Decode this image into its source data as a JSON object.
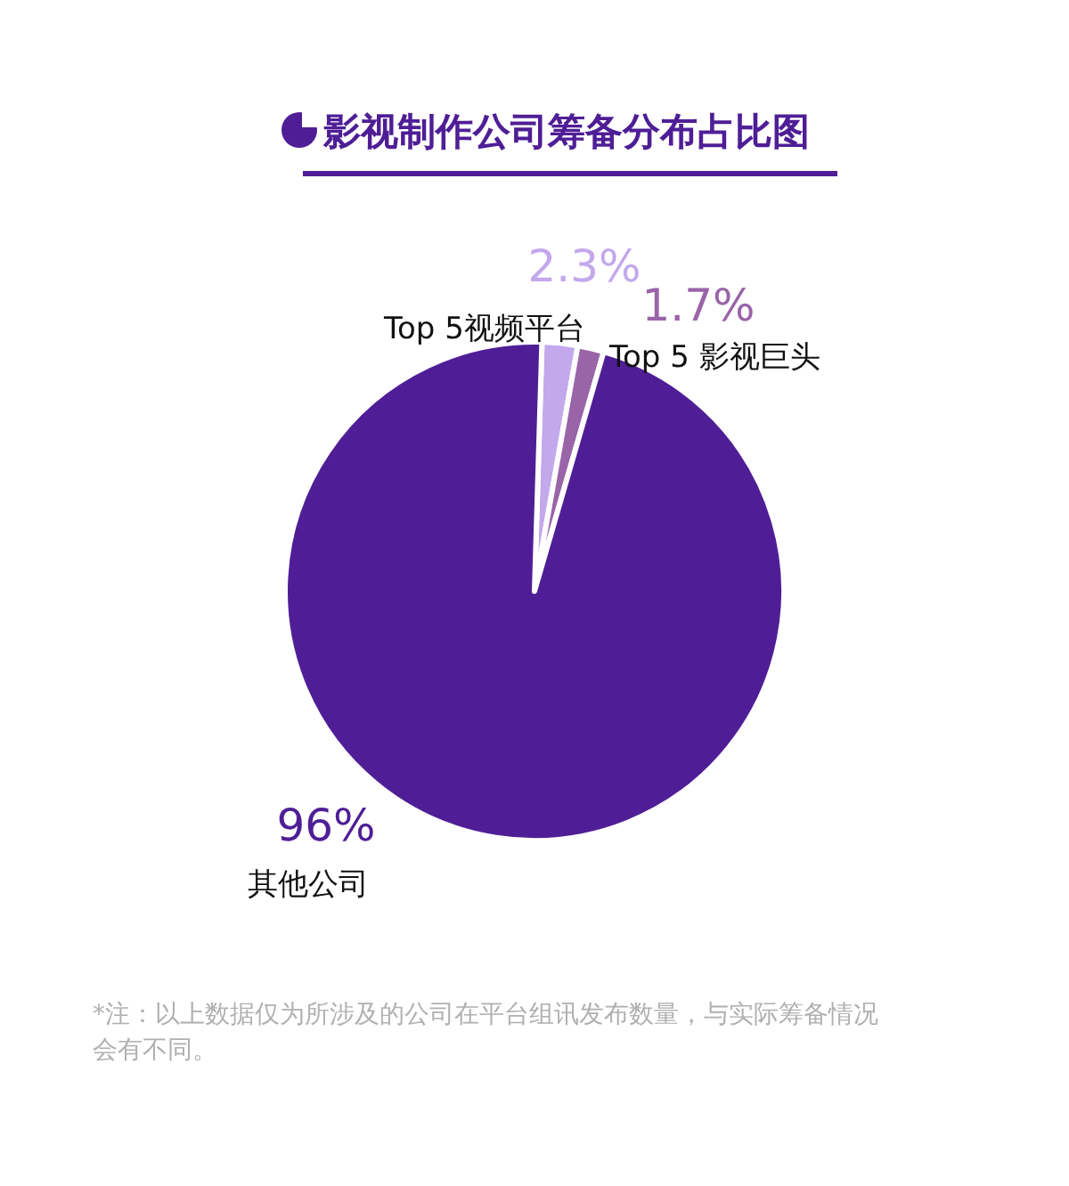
{
  "chart_data": {
    "type": "pie",
    "title": "影视制作公司筹备分布占比图",
    "categories": [
      "Top 5视频平台",
      "Top 5 影视巨头",
      "其他公司"
    ],
    "values": [
      2.3,
      1.7,
      96
    ],
    "value_labels": [
      "2.3%",
      "1.7%",
      "96%"
    ],
    "colors": [
      "#c3a8ec",
      "#9a64a8",
      "#4f1e96"
    ],
    "legend": false,
    "annotations": [
      "*注：以上数据仅为所涉及的公司在平台组讯发布数量，与实际筹备情况会有不同。"
    ]
  }
}
